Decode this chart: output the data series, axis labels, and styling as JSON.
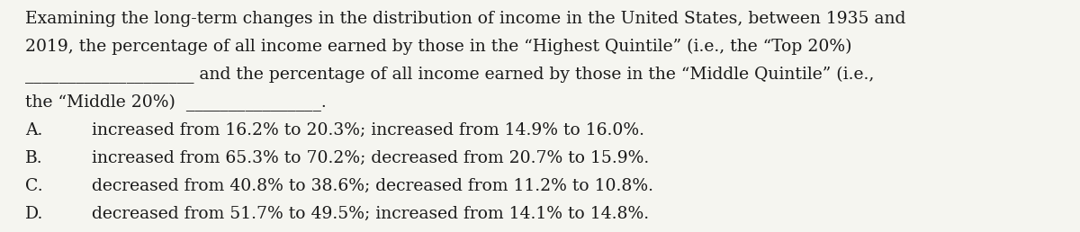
{
  "background_color": "#f5f5f0",
  "text_color": "#1a1a1a",
  "font_size": 13.5,
  "paragraph": "Examining the long-term changes in the distribution of income in the United States, between 1935 and\n2019, the percentage of all income earned by those in the “Highest Quintile” (i.e., the “Top 20%)\n__________________ and the percentage of all income earned by those in the “Middle Quintile” (i.e.,\nthe “Middle 20%) ________________.",
  "options": [
    [
      "A.",
      "increased from 16.2% to 20.3%; increased from 14.9% to 16.0%."
    ],
    [
      "B.",
      "increased from 65.3% to 70.2%; decreased from 20.7% to 15.9%."
    ],
    [
      "C.",
      "decreased from 40.8% to 38.6%; decreased from 11.2% to 10.8%."
    ],
    [
      "D.",
      "decreased from 51.7% to 49.5%; increased from 14.1% to 14.8%."
    ]
  ],
  "line1": "Examining the long-term changes in the distribution of income in the United States, between 1935 and",
  "line2": "2019, the percentage of all income earned by those in the “Highest Quintile” (i.e., the “Top 20%)",
  "line3_prefix": "                              and the percentage of all income earned by those in the “Middle Quintile” (i.e.,",
  "line4_prefix": "the “Middle 20%)                              .",
  "option_indent": 0.065
}
